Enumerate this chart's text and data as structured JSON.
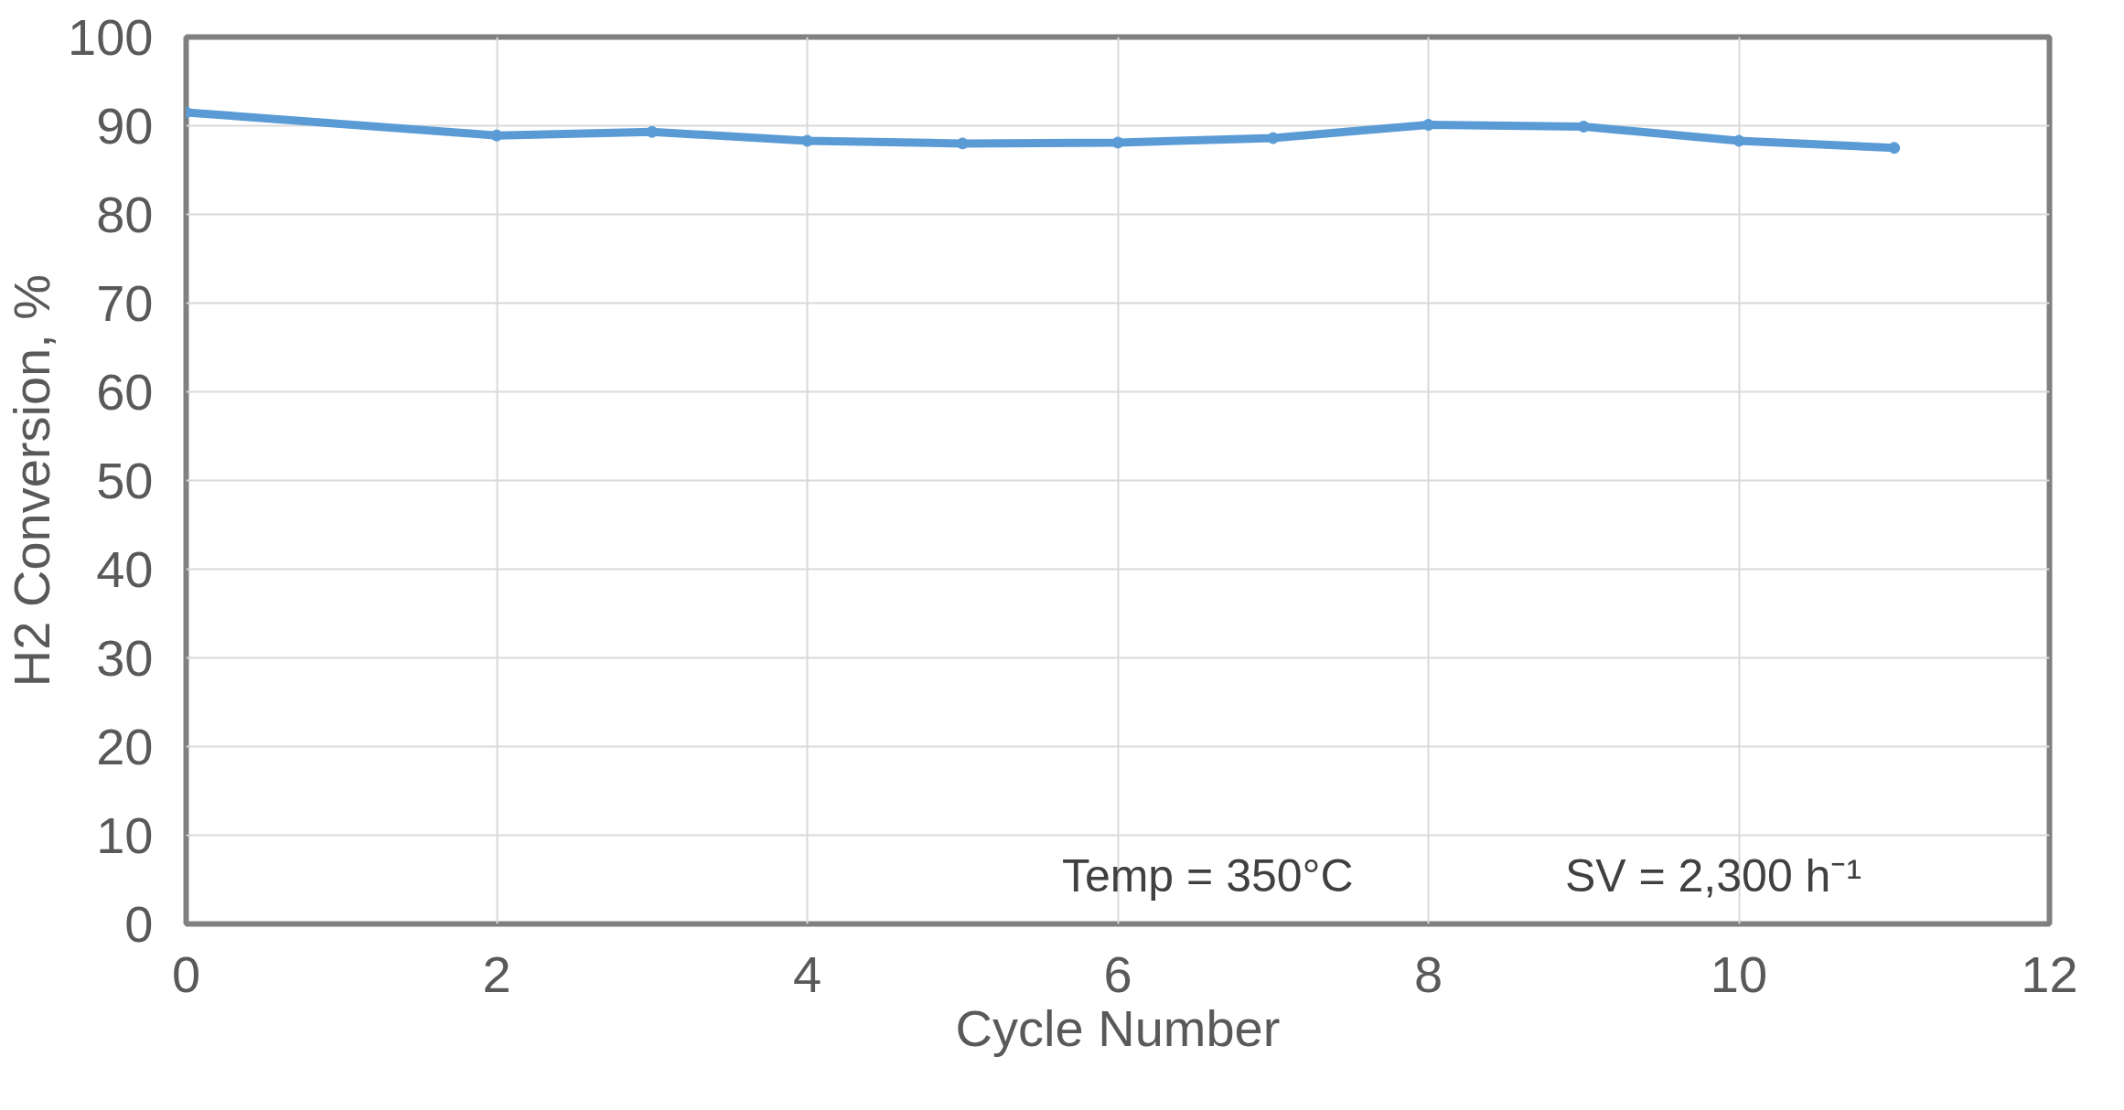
{
  "chart_data": {
    "type": "line",
    "xlabel": "Cycle Number",
    "ylabel": "H2 Conversion, %",
    "x": [
      0,
      2,
      3,
      4,
      5,
      6,
      7,
      8,
      9,
      10,
      11
    ],
    "series": [
      {
        "color": "#5b9bd5",
        "values": [
          91.5,
          88.9,
          89.3,
          88.3,
          88.0,
          88.1,
          88.6,
          90.1,
          89.9,
          88.3,
          87.5
        ]
      }
    ],
    "xlim": [
      0,
      12
    ],
    "xticks": [
      0,
      2,
      4,
      6,
      8,
      10,
      12
    ],
    "ylim": [
      0,
      100
    ],
    "yticks": [
      0,
      10,
      20,
      30,
      40,
      50,
      60,
      70,
      80,
      90,
      100
    ],
    "grid": true,
    "marker": "circle",
    "line_style": "solid",
    "annotations": [
      "Temp = 350°C",
      "SV = 2,300 h⁻¹"
    ]
  }
}
